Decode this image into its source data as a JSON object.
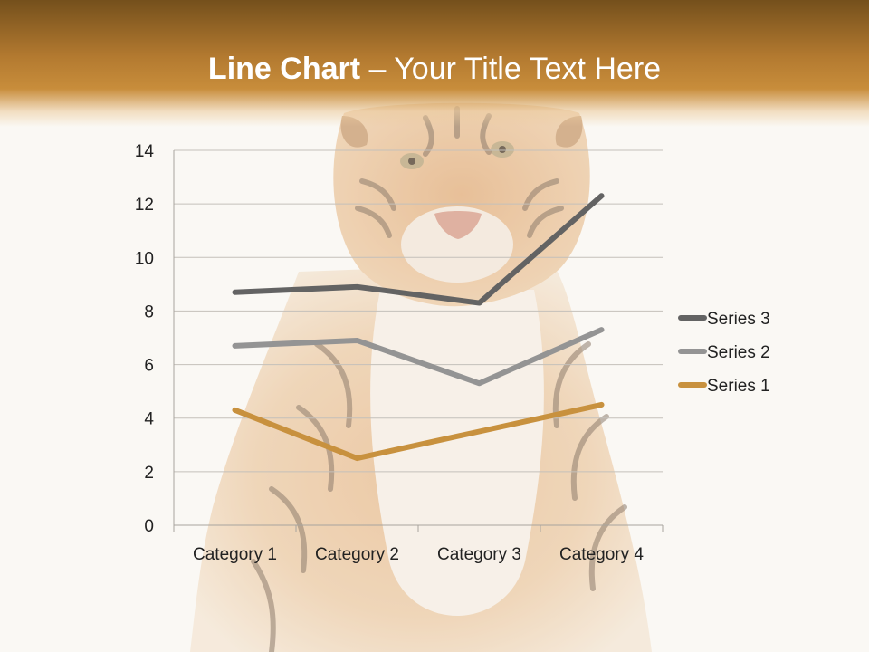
{
  "slide": {
    "title_bold": "Line Chart",
    "title_rest": " – Your Title Text Here",
    "background_image": "tiger-photo",
    "accent_color": "#b97f32"
  },
  "chart_data": {
    "type": "line",
    "categories": [
      "Category 1",
      "Category 2",
      "Category 3",
      "Category 4"
    ],
    "series": [
      {
        "name": "Series 1",
        "values": [
          4.3,
          2.5,
          3.5,
          4.5
        ],
        "color": "#c8913e"
      },
      {
        "name": "Series 2",
        "values": [
          6.7,
          6.9,
          5.3,
          7.3
        ],
        "color": "#949494"
      },
      {
        "name": "Series 3",
        "values": [
          8.7,
          8.9,
          8.3,
          12.3
        ],
        "color": "#636363"
      }
    ],
    "ylim": [
      0,
      14
    ],
    "yticks": [
      0,
      2,
      4,
      6,
      8,
      10,
      12,
      14
    ],
    "grid": true,
    "legend_position": "right",
    "legend_order": [
      "Series 3",
      "Series 2",
      "Series 1"
    ]
  }
}
